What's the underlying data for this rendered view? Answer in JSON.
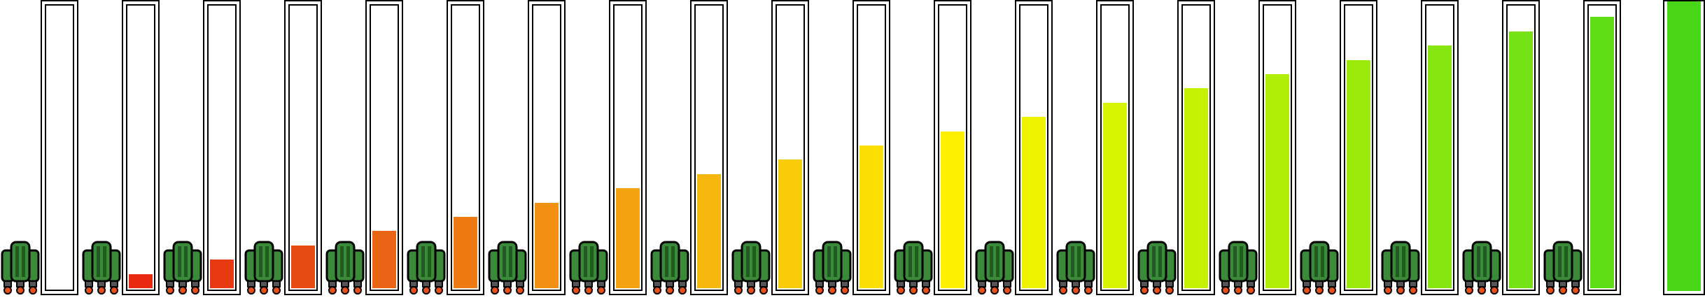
{
  "sprite_sheet": {
    "icon": "jetpack-icon",
    "colors": {
      "jetpack_body": "#3a8a3a",
      "jetpack_dark": "#1f5a1f",
      "flame": "#e8501a",
      "gauge_border": "#000000",
      "gauge_background": "#ffffff"
    },
    "frames": [
      {
        "index": 0,
        "fuel": 0.0,
        "fill_color": "#ffffff"
      },
      {
        "index": 1,
        "fuel": 0.05,
        "fill_color": "#e82a12"
      },
      {
        "index": 2,
        "fuel": 0.1,
        "fill_color": "#e83a12"
      },
      {
        "index": 3,
        "fuel": 0.15,
        "fill_color": "#e84a14"
      },
      {
        "index": 4,
        "fuel": 0.2,
        "fill_color": "#ea6416"
      },
      {
        "index": 5,
        "fuel": 0.25,
        "fill_color": "#ee7a14"
      },
      {
        "index": 6,
        "fuel": 0.3,
        "fill_color": "#f29014"
      },
      {
        "index": 7,
        "fuel": 0.35,
        "fill_color": "#f4a410"
      },
      {
        "index": 8,
        "fuel": 0.4,
        "fill_color": "#f6b80c"
      },
      {
        "index": 9,
        "fuel": 0.45,
        "fill_color": "#f8cc08"
      },
      {
        "index": 10,
        "fuel": 0.5,
        "fill_color": "#fade04"
      },
      {
        "index": 11,
        "fuel": 0.55,
        "fill_color": "#fff000"
      },
      {
        "index": 12,
        "fuel": 0.6,
        "fill_color": "#eef400"
      },
      {
        "index": 13,
        "fuel": 0.65,
        "fill_color": "#d8f400"
      },
      {
        "index": 14,
        "fuel": 0.7,
        "fill_color": "#c4f204"
      },
      {
        "index": 15,
        "fuel": 0.75,
        "fill_color": "#b0ee08"
      },
      {
        "index": 16,
        "fuel": 0.8,
        "fill_color": "#9cea0c"
      },
      {
        "index": 17,
        "fuel": 0.85,
        "fill_color": "#88e610"
      },
      {
        "index": 18,
        "fuel": 0.9,
        "fill_color": "#74e214"
      },
      {
        "index": 19,
        "fuel": 0.95,
        "fill_color": "#5ede16"
      },
      {
        "index": 20,
        "fuel": 1.0,
        "fill_color": "#4ad618"
      }
    ]
  }
}
